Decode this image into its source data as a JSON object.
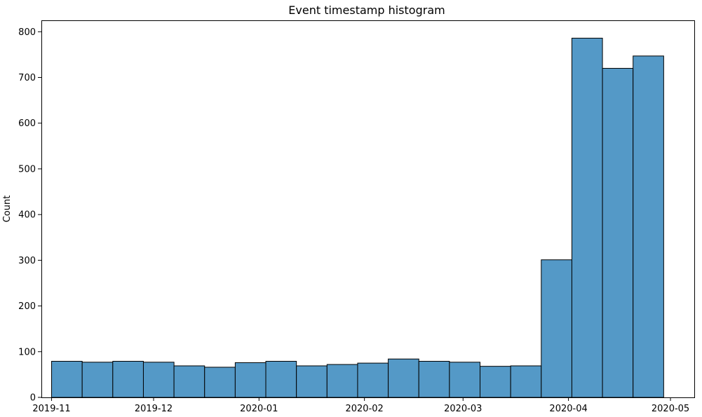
{
  "chart_data": {
    "type": "bar",
    "title": "Event timestamp histogram",
    "xlabel": "",
    "ylabel": "Count",
    "x_range": [
      "2019-10-29",
      "2020-05-08"
    ],
    "ylim": [
      0,
      825
    ],
    "x_ticks": [
      "2019-11",
      "2019-12",
      "2020-01",
      "2020-02",
      "2020-03",
      "2020-04",
      "2020-05"
    ],
    "y_ticks": [
      0,
      100,
      200,
      300,
      400,
      500,
      600,
      700,
      800
    ],
    "bin_edges": [
      "2019-11-01",
      "2019-11-10",
      "2019-11-19",
      "2019-11-28",
      "2019-12-07",
      "2019-12-16",
      "2019-12-25",
      "2020-01-03",
      "2020-01-12",
      "2020-01-21",
      "2020-01-30",
      "2020-02-08",
      "2020-02-17",
      "2020-02-26",
      "2020-03-06",
      "2020-03-15",
      "2020-03-24",
      "2020-04-02",
      "2020-04-11",
      "2020-04-20",
      "2020-04-29"
    ],
    "values": [
      79,
      77,
      79,
      77,
      69,
      66,
      76,
      79,
      69,
      72,
      75,
      84,
      79,
      77,
      68,
      69,
      301,
      786,
      720,
      747
    ],
    "bar_color": "#5499c7",
    "edge_color": "#000000",
    "grid": false,
    "legend": "none"
  }
}
